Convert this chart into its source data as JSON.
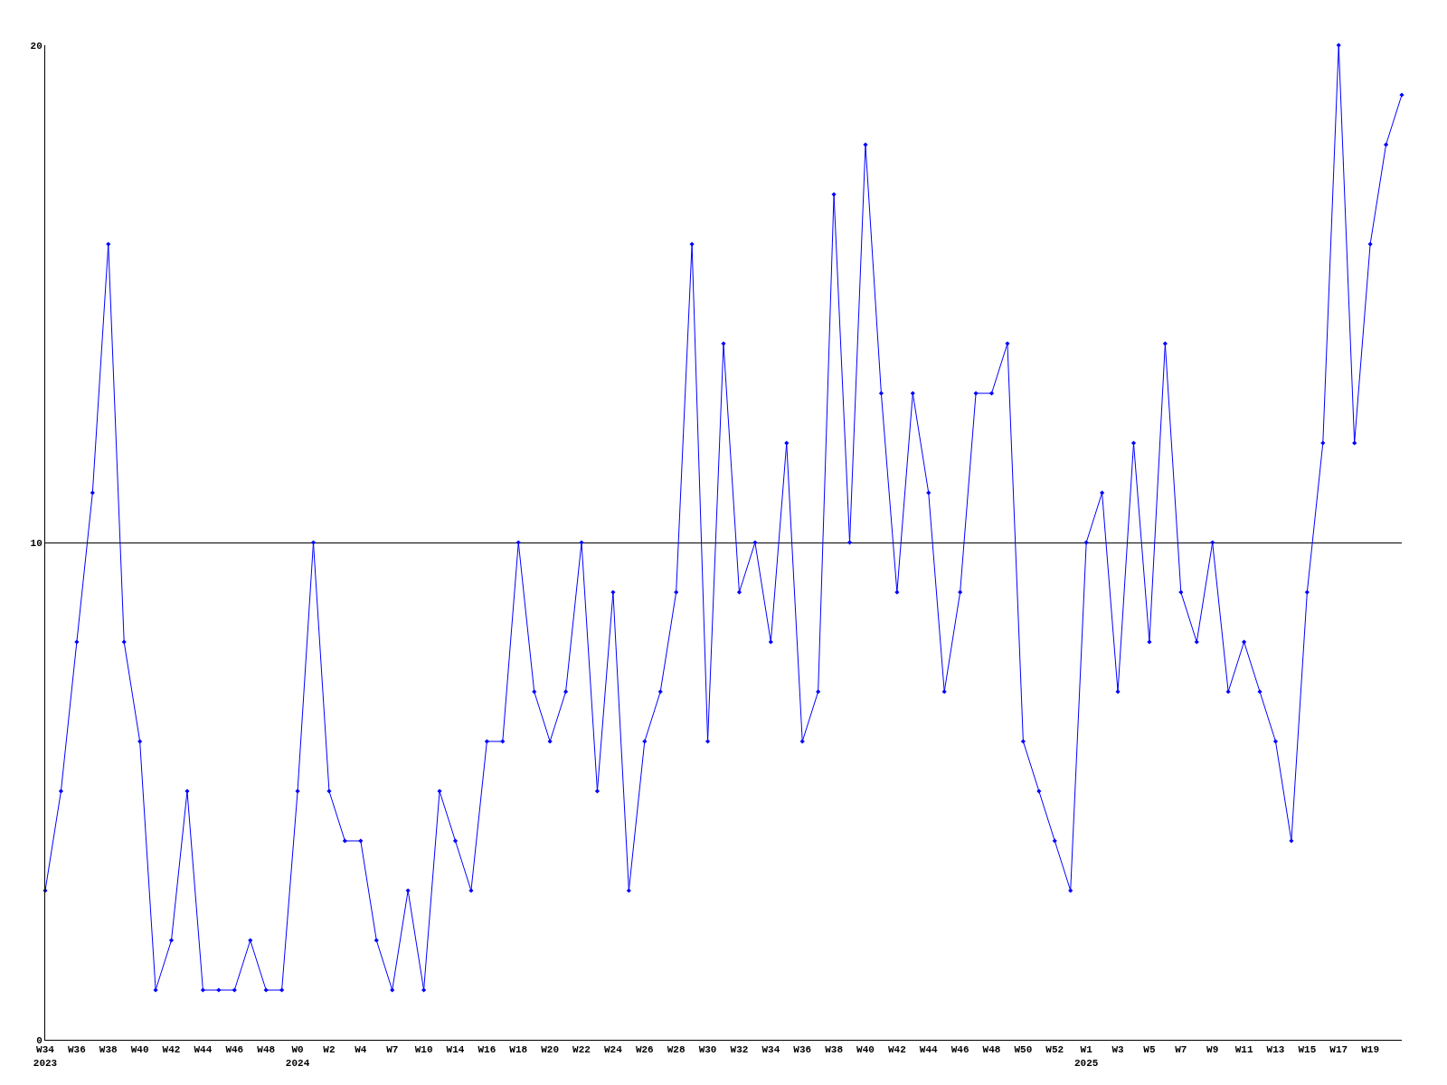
{
  "chart_data": {
    "type": "line",
    "categories": [
      "W34\n2023",
      null,
      "W36",
      null,
      "W38",
      null,
      "W40",
      null,
      "W42",
      null,
      "W44",
      null,
      "W46",
      null,
      "W48",
      null,
      "W0\n2024",
      null,
      "W2",
      null,
      "W4",
      null,
      "W7",
      null,
      "W10",
      null,
      "W14",
      null,
      "W16",
      null,
      "W18",
      null,
      "W20",
      null,
      "W22",
      null,
      "W24",
      null,
      "W26",
      null,
      "W28",
      null,
      "W30",
      null,
      "W32",
      null,
      "W34",
      null,
      "W36",
      null,
      "W38",
      null,
      "W40",
      null,
      "W42",
      null,
      "W44",
      null,
      "W46",
      null,
      "W48",
      null,
      "W50",
      null,
      "W52",
      null,
      "W1\n2025",
      null,
      "W3",
      null,
      "W5",
      null,
      "W7",
      null,
      "W9",
      null,
      "W11",
      null,
      "W13",
      null,
      "W15",
      null,
      "W17",
      null,
      "W19",
      null,
      null
    ],
    "series": [
      {
        "color": "#0000ff",
        "values": [
          3,
          5,
          8,
          11,
          16,
          8,
          6,
          1,
          2,
          5,
          1,
          1,
          1,
          2,
          1,
          1,
          5,
          10,
          5,
          4,
          4,
          2,
          1,
          3,
          1,
          5,
          4,
          3,
          6,
          6,
          10,
          7,
          6,
          7,
          10,
          5,
          9,
          3,
          6,
          7,
          9,
          16,
          6,
          14,
          9,
          10,
          8,
          12,
          6,
          7,
          17,
          10,
          18,
          13,
          9,
          13,
          11,
          7,
          9,
          13,
          13,
          14,
          6,
          5,
          4,
          3,
          10,
          11,
          7,
          12,
          8,
          14,
          9,
          8,
          10,
          7,
          8,
          7,
          6,
          4,
          9,
          12,
          20,
          12,
          16,
          18,
          19
        ]
      }
    ],
    "ylim": [
      0,
      20
    ],
    "yticks": [
      0,
      10,
      20
    ],
    "grid": "y",
    "marker": "diamond",
    "line_style": "solid",
    "legend": false
  }
}
